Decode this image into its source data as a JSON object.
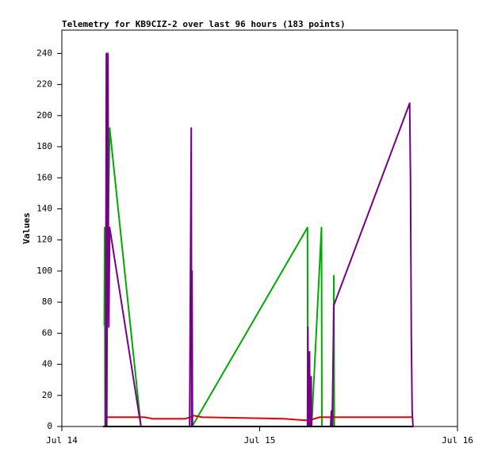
{
  "chart_data": {
    "type": "line",
    "title": "Telemetry for KB9CIZ-2 over last 96 hours (183 points)",
    "y_label": "Values",
    "xlim": [
      0,
      48
    ],
    "xticks": [
      {
        "value": 0,
        "label": "Jul 14"
      },
      {
        "value": 24,
        "label": "Jul 15"
      },
      {
        "value": 48,
        "label": "Jul 16"
      }
    ],
    "ylim": [
      0,
      255
    ],
    "yticks": [
      0,
      20,
      40,
      60,
      80,
      100,
      120,
      140,
      160,
      180,
      200,
      220,
      240
    ],
    "series": [
      {
        "color": "#00aa00",
        "x": [
          5.15,
          5.2,
          5.25,
          5.8,
          9.6,
          15.6,
          15.8,
          29.8,
          29.85,
          30.3,
          31.5,
          31.55,
          32.9,
          33.0,
          33.05,
          41.8,
          42.3
        ],
        "values": [
          65,
          128,
          0,
          192,
          0,
          0,
          0,
          128,
          0,
          0,
          128,
          0,
          0,
          97,
          0,
          0,
          0
        ]
      },
      {
        "color": "#ee0000",
        "x": [
          5.3,
          10,
          11,
          15,
          15.6,
          16,
          17,
          22,
          27,
          29.5,
          30,
          31.3,
          42.6
        ],
        "values": [
          6,
          6,
          5,
          5,
          6,
          7,
          6,
          5.5,
          5,
          4,
          4,
          6,
          6
        ]
      },
      {
        "color": "#770088",
        "x": [
          5.0,
          5.3,
          5.4,
          5.45,
          5.6,
          5.65,
          5.7,
          5.8,
          9.6,
          15.5,
          15.7,
          15.75,
          15.8,
          15.85,
          29.8,
          29.85,
          29.9,
          30.05,
          30.1,
          30.25,
          30.3,
          32.6,
          32.7,
          32.8,
          33.0,
          42.2,
          42.3,
          42.4,
          42.5,
          42.6
        ],
        "values": [
          0,
          0,
          240,
          0,
          240,
          120,
          64,
          128,
          0,
          0,
          192,
          0,
          100,
          0,
          0,
          64,
          0,
          48,
          0,
          32,
          0,
          0,
          10,
          0,
          78,
          208,
          158,
          57,
          10,
          0
        ]
      },
      {
        "color": "#000000",
        "x": [
          5.0,
          42.6
        ],
        "values": [
          0,
          0
        ]
      }
    ]
  }
}
